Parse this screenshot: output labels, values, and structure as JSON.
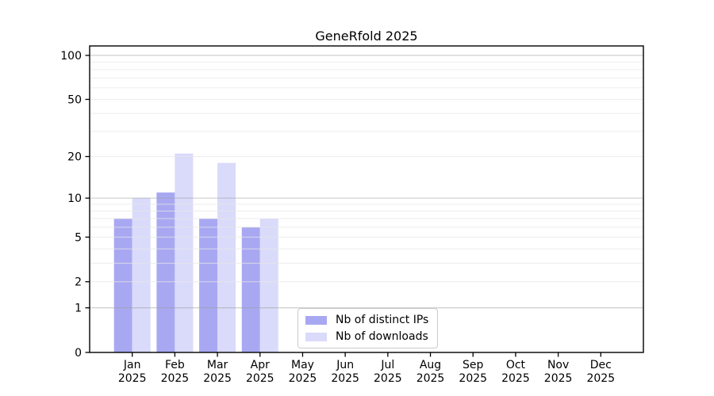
{
  "chart_data": {
    "type": "bar",
    "title": "GeneRfold 2025",
    "categories": [
      "Jan",
      "Feb",
      "Mar",
      "Apr",
      "May",
      "Jun",
      "Jul",
      "Aug",
      "Sep",
      "Oct",
      "Nov",
      "Dec"
    ],
    "x_sublabel": "2025",
    "series": [
      {
        "name": "Nb of distinct IPs",
        "color": "#a8a8f2",
        "values": [
          7,
          11,
          7,
          6,
          0,
          0,
          0,
          0,
          0,
          0,
          0,
          0
        ]
      },
      {
        "name": "Nb of downloads",
        "color": "#dadafa",
        "values": [
          10,
          21,
          18,
          7,
          0,
          0,
          0,
          0,
          0,
          0,
          0,
          0
        ]
      }
    ],
    "y_scale": "log1p",
    "ylim": [
      0,
      116
    ],
    "y_ticks": [
      0,
      1,
      2,
      5,
      10,
      20,
      50,
      100
    ],
    "grid": {
      "major_lines": [
        1,
        10,
        100
      ],
      "minor_lines": [
        2,
        3,
        4,
        5,
        6,
        7,
        8,
        9,
        20,
        30,
        40,
        50,
        60,
        70,
        80,
        90
      ],
      "major_color": "#9a9a9a",
      "minor_color": "#e7e7e7"
    },
    "legend_position": "bottom-center",
    "spine_color": "#000000",
    "background_color": "#ffffff"
  }
}
